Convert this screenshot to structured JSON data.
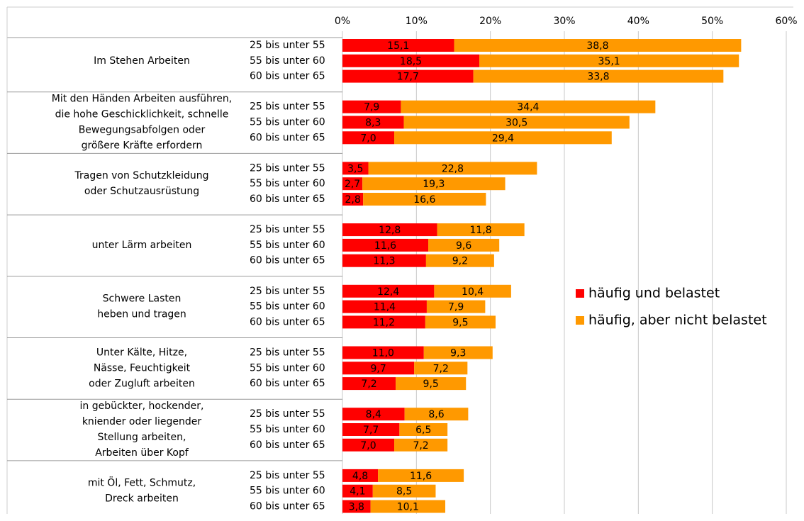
{
  "chart_data": {
    "type": "bar",
    "orientation": "horizontal",
    "stacked": true,
    "groups": [
      {
        "label": [
          "Im Stehen Arbeiten"
        ]
      },
      {
        "label": [
          "Mit den Händen Arbeiten ausführen,",
          "die hohe Geschicklichkeit, schnelle",
          "Bewegungsabfolgen oder",
          "größere Kräfte erfordern"
        ]
      },
      {
        "label": [
          "Tragen von  Schutzkleidung",
          "oder Schutzausrüstung"
        ]
      },
      {
        "label": [
          "unter Lärm arbeiten"
        ]
      },
      {
        "label": [
          "Schwere Lasten",
          "heben und tragen"
        ]
      },
      {
        "label": [
          "Unter Kälte, Hitze,",
          "Nässe, Feuchtigkeit",
          "oder Zugluft arbeiten"
        ]
      },
      {
        "label": [
          "in gebückter, hockender,",
          "kniender oder liegender",
          "Stellung arbeiten,",
          "Arbeiten über Kopf"
        ]
      },
      {
        "label": [
          "mit Öl, Fett, Schmutz,",
          "Dreck arbeiten"
        ]
      }
    ],
    "categories": [
      "25 bis unter 55",
      "55 bis unter 60",
      "60 bis unter 65",
      "25 bis unter 55",
      "55 bis unter 60",
      "60 bis unter 65",
      "25 bis unter 55",
      "55 bis unter 60",
      "60 bis unter 65",
      "25 bis unter 55",
      "55 bis unter 60",
      "60 bis unter 65",
      "25 bis unter 55",
      "55 bis unter 60",
      "60 bis unter 65",
      "25 bis unter 55",
      "55 bis unter 60",
      "60 bis unter 65",
      "25 bis unter 55",
      "55 bis unter 60",
      "60 bis unter 65",
      "25 bis unter 55",
      "55 bis unter 60",
      "60 bis unter 65"
    ],
    "series": [
      {
        "name": "häufig und belastet",
        "color": "#ff0000",
        "values": [
          15.1,
          18.5,
          17.7,
          7.9,
          8.3,
          7.0,
          3.5,
          2.7,
          2.8,
          12.8,
          11.6,
          11.3,
          12.4,
          11.4,
          11.2,
          11.0,
          9.7,
          7.2,
          8.4,
          7.7,
          7.0,
          4.8,
          4.1,
          3.8
        ],
        "value_labels": [
          "15,1",
          "18,5",
          "17,7",
          "7,9",
          "8,3",
          "7,0",
          "3,5",
          "2,7",
          "2,8",
          "12,8",
          "11,6",
          "11,3",
          "12,4",
          "11,4",
          "11,2",
          "11,0",
          "9,7",
          "7,2",
          "8,4",
          "7,7",
          "7,0",
          "4,8",
          "4,1",
          "3,8"
        ]
      },
      {
        "name": "häufig, aber nicht belastet",
        "color": "#ff9900",
        "values": [
          38.8,
          35.1,
          33.8,
          34.4,
          30.5,
          29.4,
          22.8,
          19.3,
          16.6,
          11.8,
          9.6,
          9.2,
          10.4,
          7.9,
          9.5,
          9.3,
          7.2,
          9.5,
          8.6,
          6.5,
          7.2,
          11.6,
          8.5,
          10.1
        ],
        "value_labels": [
          "38,8",
          "35,1",
          "33,8",
          "34,4",
          "30,5",
          "29,4",
          "22,8",
          "19,3",
          "16,6",
          "11,8",
          "9,6",
          "9,2",
          "10,4",
          "7,9",
          "9,5",
          "9,3",
          "7,2",
          "9,5",
          "8,6",
          "6,5",
          "7,2",
          "11,6",
          "8,5",
          "10,1"
        ]
      }
    ],
    "xlim": [
      0,
      60
    ],
    "xticks": [
      {
        "value": 0,
        "label": "0%"
      },
      {
        "value": 10,
        "label": "10%"
      },
      {
        "value": 20,
        "label": "20%"
      },
      {
        "value": 30,
        "label": "30%"
      },
      {
        "value": 40,
        "label": "40%"
      },
      {
        "value": 50,
        "label": "50%"
      },
      {
        "value": 60,
        "label": "60%"
      }
    ],
    "grid": true,
    "legend": "right"
  }
}
